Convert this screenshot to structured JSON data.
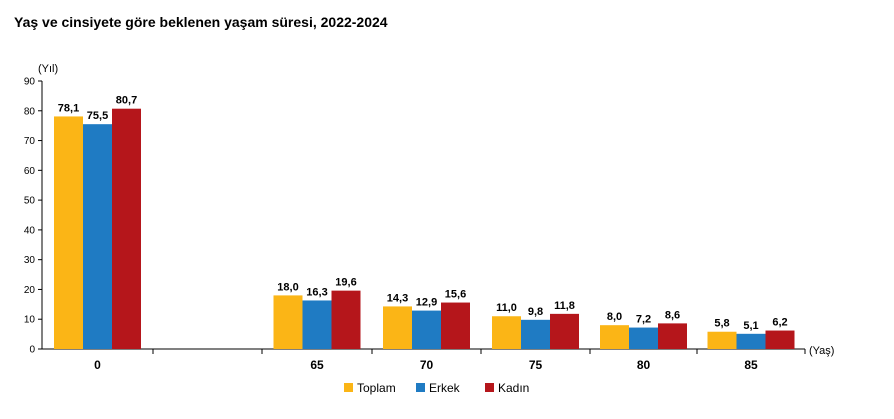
{
  "chart_data": {
    "type": "bar",
    "title": "Yaş ve cinsiyete göre beklenen yaşam süresi, 2022-2024",
    "ylabel": "(Yıl)",
    "xlabel": "(Yaş)",
    "ylim": [
      0,
      90
    ],
    "yticks": [
      "0",
      "10",
      "20",
      "30",
      "40",
      "50",
      "60",
      "70",
      "80",
      "90"
    ],
    "categories": [
      "0",
      "65",
      "70",
      "75",
      "80",
      "85"
    ],
    "series": [
      {
        "name": "Toplam",
        "color": "#FBB516",
        "values": [
          78.1,
          18.0,
          14.3,
          11.0,
          8.0,
          5.8
        ],
        "labels": [
          "78,1",
          "18,0",
          "14,3",
          "11,0",
          "8,0",
          "5,8"
        ]
      },
      {
        "name": "Erkek",
        "color": "#1F7BC3",
        "values": [
          75.5,
          16.3,
          12.9,
          9.8,
          7.2,
          5.1
        ],
        "labels": [
          "75,5",
          "16,3",
          "12,9",
          "9,8",
          "7,2",
          "5,1"
        ]
      },
      {
        "name": "Kadın",
        "color": "#B5161B",
        "values": [
          80.7,
          19.6,
          15.6,
          11.8,
          8.6,
          6.2
        ],
        "labels": [
          "80,7",
          "19,6",
          "15,6",
          "11,8",
          "8,6",
          "6,2"
        ]
      }
    ],
    "legend": "bottom",
    "grid": false
  }
}
